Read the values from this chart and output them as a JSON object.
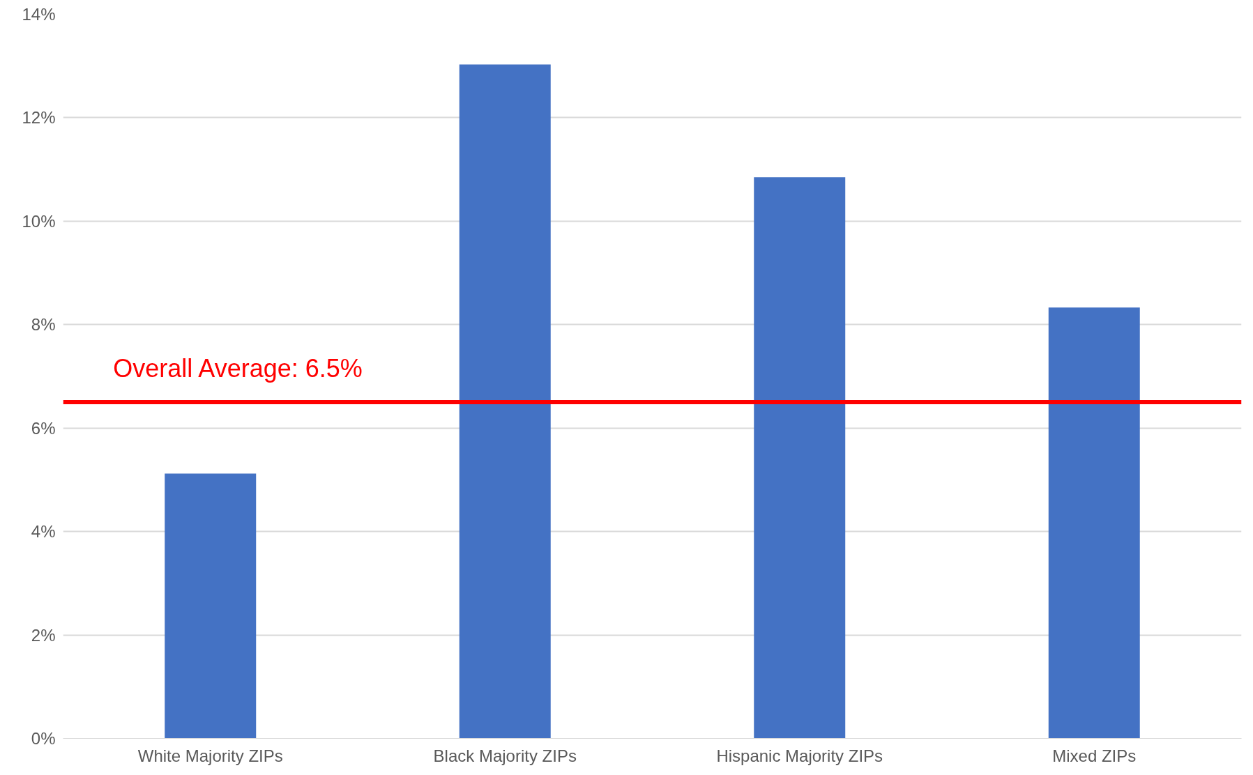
{
  "chart_data": {
    "type": "bar",
    "categories": [
      "White Majority ZIPs",
      "Black Majority ZIPs",
      "Hispanic Majority ZIPs",
      "Mixed ZIPs"
    ],
    "values": [
      5.12,
      13.03,
      10.85,
      8.33
    ],
    "color": "#4472c4",
    "ylim": [
      0,
      14
    ],
    "yticks": [
      {
        "value": 0,
        "label": "0%"
      },
      {
        "value": 2,
        "label": "2%"
      },
      {
        "value": 4,
        "label": "4%"
      },
      {
        "value": 6,
        "label": "6%"
      },
      {
        "value": 8,
        "label": "8%"
      },
      {
        "value": 10,
        "label": "10%"
      },
      {
        "value": 12,
        "label": "12%"
      },
      {
        "value": 14,
        "label": "14%"
      }
    ],
    "grid": "y",
    "ref_lines": [
      {
        "axis": "y",
        "value": 6.5,
        "label": "Overall Average: 6.5%",
        "color": "#ff0000"
      }
    ]
  }
}
